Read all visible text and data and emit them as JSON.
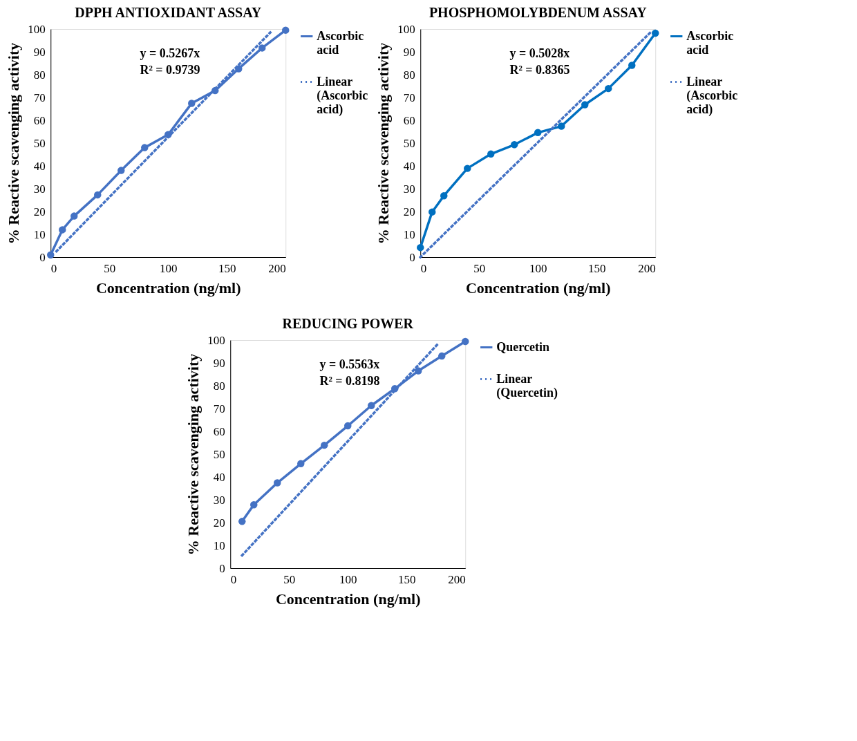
{
  "chart_data": [
    {
      "type": "line",
      "title": "DPPH ANTIOXIDANT ASSAY",
      "xlabel": "Concentration (ng/ml)",
      "ylabel": "% Reactive scavenging activity",
      "xlim": [
        0,
        200
      ],
      "ylim": [
        0,
        100
      ],
      "xticks": [
        0,
        50,
        100,
        150,
        200
      ],
      "yticks": [
        0,
        10,
        20,
        30,
        40,
        50,
        60,
        70,
        80,
        90,
        100
      ],
      "grid": false,
      "legend": "right",
      "annotations": [
        "y = 0.5267x",
        "R² = 0.9739"
      ],
      "series": [
        {
          "name": "Ascorbic acid",
          "color": "#4472c4",
          "marker": "circle",
          "line_style": "solid",
          "x": [
            0,
            10,
            20,
            40,
            60,
            80,
            100,
            120,
            140,
            160,
            180,
            200
          ],
          "values": [
            1,
            12,
            18,
            27.3,
            38,
            48,
            53.7,
            67.4,
            73,
            82.6,
            91.7,
            99.5
          ]
        },
        {
          "name": "Linear (Ascorbic acid)",
          "type": "line",
          "color": "#4472c4",
          "marker": "none",
          "line_style": "dotted",
          "x": [
            5,
            187
          ],
          "values": [
            2.6,
            98.5
          ]
        }
      ]
    },
    {
      "type": "line",
      "title": "PHOSPHOMOLYBDENUM ASSAY",
      "xlabel": "Concentration (ng/ml)",
      "ylabel": "% Reactive scavenging activity",
      "xlim": [
        0,
        200
      ],
      "ylim": [
        0,
        100
      ],
      "xticks": [
        0,
        50,
        100,
        150,
        200
      ],
      "yticks": [
        0,
        10,
        20,
        30,
        40,
        50,
        60,
        70,
        80,
        90,
        100
      ],
      "grid": false,
      "legend": "right",
      "annotations": [
        "y = 0.5028x",
        "R² = 0.8365"
      ],
      "series": [
        {
          "name": "Ascorbic acid",
          "color": "#0070c0",
          "marker": "circle",
          "line_style": "solid",
          "x": [
            0,
            10,
            20,
            40,
            60,
            80,
            100,
            120,
            140,
            160,
            180,
            200
          ],
          "values": [
            4.2,
            19.8,
            26.9,
            38.9,
            45.2,
            49.3,
            54.6,
            57.4,
            66.8,
            73.9,
            84.1,
            98.2
          ]
        },
        {
          "name": "Linear (Ascorbic acid)",
          "type": "line",
          "color": "#4472c4",
          "marker": "none",
          "line_style": "dotted",
          "x": [
            0,
            196
          ],
          "values": [
            0,
            98.6
          ]
        }
      ]
    },
    {
      "type": "line",
      "title": "REDUCING POWER",
      "xlabel": "Concentration (ng/ml)",
      "ylabel": "% Reactive scavenging activity",
      "xlim": [
        0,
        200
      ],
      "ylim": [
        0,
        100
      ],
      "xticks": [
        0,
        50,
        100,
        150,
        200
      ],
      "yticks": [
        0,
        10,
        20,
        30,
        40,
        50,
        60,
        70,
        80,
        90,
        100
      ],
      "grid": false,
      "legend": "right",
      "annotations": [
        "y = 0.5563x",
        "R² = 0.8198"
      ],
      "series": [
        {
          "name": "Quercetin",
          "color": "#4472c4",
          "marker": "circle",
          "line_style": "solid",
          "x": [
            10,
            20,
            40,
            60,
            80,
            100,
            120,
            140,
            160,
            180,
            200
          ],
          "values": [
            20.5,
            27.8,
            37.4,
            45.8,
            53.9,
            62.4,
            71.3,
            78.7,
            86.5,
            93.0,
            99.4
          ]
        },
        {
          "name": "Linear (Quercetin)",
          "type": "line",
          "color": "#4472c4",
          "marker": "none",
          "line_style": "dotted",
          "x": [
            10,
            177
          ],
          "values": [
            5.6,
            98.5
          ]
        }
      ]
    }
  ]
}
